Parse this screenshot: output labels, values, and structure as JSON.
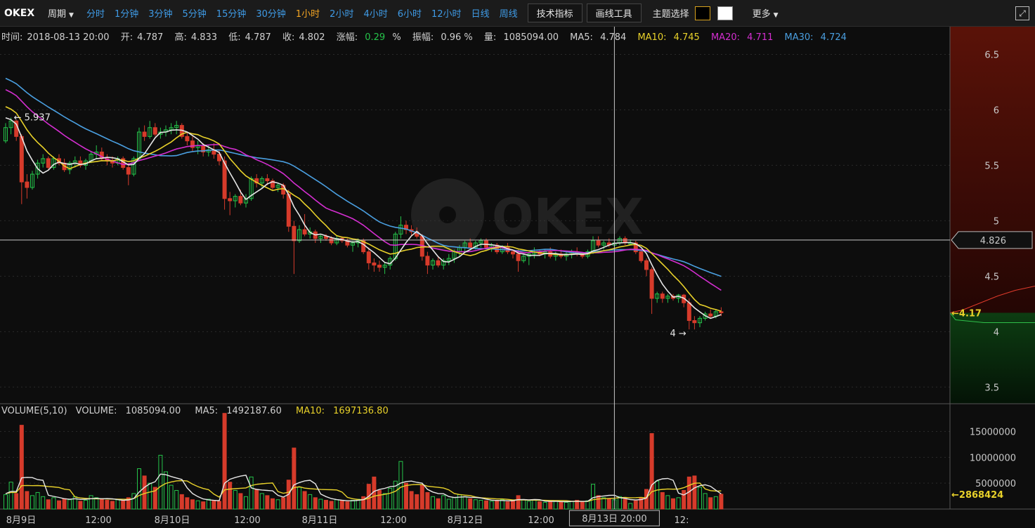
{
  "toolbar": {
    "brand": "OKEX",
    "period_label": "周期",
    "timeframes": [
      {
        "label": "分时",
        "active": false
      },
      {
        "label": "1分钟",
        "active": false
      },
      {
        "label": "3分钟",
        "active": false
      },
      {
        "label": "5分钟",
        "active": false
      },
      {
        "label": "15分钟",
        "active": false
      },
      {
        "label": "30分钟",
        "active": false
      },
      {
        "label": "1小时",
        "active": true
      },
      {
        "label": "2小时",
        "active": false
      },
      {
        "label": "4小时",
        "active": false
      },
      {
        "label": "6小时",
        "active": false
      },
      {
        "label": "12小时",
        "active": false
      },
      {
        "label": "日线",
        "active": false
      },
      {
        "label": "周线",
        "active": false
      }
    ],
    "indicator_button": "技术指标",
    "drawing_button": "画线工具",
    "theme_label": "主题选择",
    "more_label": "更多"
  },
  "info": {
    "time_label": "时间:",
    "time": "2018-08-13  20:00",
    "open_label": "开:",
    "open": "4.787",
    "high_label": "高:",
    "high": "4.833",
    "low_label": "低:",
    "low": "4.787",
    "close_label": "收:",
    "close": "4.802",
    "change_label": "涨幅:",
    "change": "0.29",
    "change_unit": "%",
    "amplitude_label": "振幅:",
    "amplitude": "0.96 %",
    "volume_label": "量:",
    "volume": "1085094.00",
    "ma5_label": "MA5:",
    "ma5": "4.784",
    "ma10_label": "MA10:",
    "ma10": "4.745",
    "ma20_label": "MA20:",
    "ma20": "4.711",
    "ma30_label": "MA30:",
    "ma30": "4.724"
  },
  "vol_info": {
    "title": "VOLUME(5,10)",
    "volume_label": "VOLUME:",
    "volume": "1085094.00",
    "ma5_label": "MA5:",
    "ma5": "1492187.60",
    "ma10_label": "MA10:",
    "ma10": "1697136.80"
  },
  "watermark": "OKEX",
  "colors": {
    "up": "#25c44a",
    "down": "#d63b2b",
    "ma5": "#e6e6e6",
    "ma10": "#e8d12a",
    "ma20": "#d42ed0",
    "ma30": "#4a9fe0"
  },
  "chart_data": {
    "type": "candlestick",
    "interval": "1h",
    "y_ticks": [
      "6.5",
      "6",
      "5.5",
      "5",
      "4.5",
      "4",
      "3.5"
    ],
    "ylim": [
      3.35,
      6.75
    ],
    "x_ticks": [
      "8月9日",
      "12:00",
      "8月10日",
      "12:00",
      "8月11日",
      "12:00",
      "8月12日",
      "12:00",
      "8月13日",
      "12:"
    ],
    "volume_ticks": [
      "15000000",
      "10000000",
      "5000000"
    ],
    "volume_ylim": [
      0,
      19000000
    ],
    "crosshair_price": "4.826",
    "crosshair_time": "8月13日  20:00",
    "max_annotation": "5.937",
    "min_annotation": "4",
    "last_price": "4.17",
    "last_volume": "2868424",
    "ohlc": [
      [
        5.72,
        5.88,
        5.7,
        5.84
      ],
      [
        5.84,
        5.93,
        5.78,
        5.9
      ],
      [
        5.9,
        5.91,
        5.72,
        5.76
      ],
      [
        5.76,
        5.78,
        5.15,
        5.35
      ],
      [
        5.35,
        5.42,
        5.2,
        5.3
      ],
      [
        5.3,
        5.45,
        5.28,
        5.42
      ],
      [
        5.42,
        5.55,
        5.38,
        5.52
      ],
      [
        5.52,
        5.6,
        5.48,
        5.56
      ],
      [
        5.56,
        5.58,
        5.46,
        5.48
      ],
      [
        5.48,
        5.58,
        5.46,
        5.56
      ],
      [
        5.56,
        5.6,
        5.5,
        5.52
      ],
      [
        5.52,
        5.56,
        5.44,
        5.46
      ],
      [
        5.46,
        5.54,
        5.42,
        5.52
      ],
      [
        5.52,
        5.58,
        5.48,
        5.54
      ],
      [
        5.54,
        5.58,
        5.48,
        5.5
      ],
      [
        5.5,
        5.56,
        5.46,
        5.54
      ],
      [
        5.54,
        5.62,
        5.52,
        5.6
      ],
      [
        5.6,
        5.68,
        5.56,
        5.62
      ],
      [
        5.62,
        5.66,
        5.54,
        5.56
      ],
      [
        5.56,
        5.6,
        5.5,
        5.54
      ],
      [
        5.54,
        5.58,
        5.48,
        5.52
      ],
      [
        5.52,
        5.58,
        5.5,
        5.56
      ],
      [
        5.56,
        5.58,
        5.46,
        5.48
      ],
      [
        5.48,
        5.52,
        5.32,
        5.42
      ],
      [
        5.42,
        5.58,
        5.4,
        5.56
      ],
      [
        5.56,
        5.84,
        5.54,
        5.8
      ],
      [
        5.8,
        5.86,
        5.72,
        5.76
      ],
      [
        5.76,
        5.9,
        5.74,
        5.84
      ],
      [
        5.84,
        5.88,
        5.76,
        5.78
      ],
      [
        5.78,
        5.84,
        5.74,
        5.8
      ],
      [
        5.8,
        5.86,
        5.76,
        5.82
      ],
      [
        5.82,
        5.88,
        5.78,
        5.84
      ],
      [
        5.84,
        5.9,
        5.78,
        5.86
      ],
      [
        5.86,
        5.88,
        5.74,
        5.76
      ],
      [
        5.76,
        5.8,
        5.68,
        5.72
      ],
      [
        5.72,
        5.76,
        5.62,
        5.66
      ],
      [
        5.66,
        5.72,
        5.6,
        5.68
      ],
      [
        5.68,
        5.7,
        5.58,
        5.62
      ],
      [
        5.62,
        5.68,
        5.58,
        5.64
      ],
      [
        5.64,
        5.7,
        5.56,
        5.6
      ],
      [
        5.6,
        5.64,
        5.5,
        5.54
      ],
      [
        5.54,
        5.58,
        5.1,
        5.2
      ],
      [
        5.2,
        5.26,
        5.05,
        5.18
      ],
      [
        5.18,
        5.24,
        5.12,
        5.22
      ],
      [
        5.22,
        5.28,
        5.14,
        5.16
      ],
      [
        5.16,
        5.24,
        5.12,
        5.2
      ],
      [
        5.2,
        5.4,
        5.18,
        5.38
      ],
      [
        5.38,
        5.42,
        5.3,
        5.34
      ],
      [
        5.34,
        5.4,
        5.3,
        5.38
      ],
      [
        5.38,
        5.42,
        5.32,
        5.36
      ],
      [
        5.36,
        5.38,
        5.28,
        5.3
      ],
      [
        5.3,
        5.34,
        5.26,
        5.32
      ],
      [
        5.32,
        5.34,
        5.2,
        5.24
      ],
      [
        5.24,
        5.28,
        4.9,
        4.95
      ],
      [
        4.95,
        5.0,
        4.52,
        4.82
      ],
      [
        4.82,
        4.96,
        4.8,
        4.92
      ],
      [
        4.92,
        5.06,
        4.86,
        4.88
      ],
      [
        4.88,
        4.94,
        4.84,
        4.9
      ],
      [
        4.9,
        4.92,
        4.8,
        4.84
      ],
      [
        4.84,
        4.88,
        4.8,
        4.86
      ],
      [
        4.86,
        4.88,
        4.82,
        4.84
      ],
      [
        4.84,
        4.86,
        4.78,
        4.8
      ],
      [
        4.8,
        4.86,
        4.78,
        4.84
      ],
      [
        4.84,
        4.86,
        4.8,
        4.82
      ],
      [
        4.82,
        4.84,
        4.76,
        4.78
      ],
      [
        4.78,
        4.82,
        4.72,
        4.8
      ],
      [
        4.8,
        4.84,
        4.76,
        4.82
      ],
      [
        4.82,
        4.84,
        4.7,
        4.72
      ],
      [
        4.72,
        4.76,
        4.56,
        4.62
      ],
      [
        4.62,
        4.66,
        4.54,
        4.6
      ],
      [
        4.6,
        4.64,
        4.54,
        4.58
      ],
      [
        4.58,
        4.62,
        4.52,
        4.6
      ],
      [
        4.6,
        4.68,
        4.56,
        4.66
      ],
      [
        4.66,
        4.9,
        4.64,
        4.88
      ],
      [
        4.88,
        5.04,
        4.84,
        4.96
      ],
      [
        4.96,
        5.0,
        4.88,
        4.92
      ],
      [
        4.92,
        4.96,
        4.86,
        4.9
      ],
      [
        4.9,
        4.94,
        4.84,
        4.86
      ],
      [
        4.86,
        4.88,
        4.64,
        4.68
      ],
      [
        4.68,
        4.72,
        4.52,
        4.6
      ],
      [
        4.6,
        4.66,
        4.56,
        4.64
      ],
      [
        4.64,
        4.68,
        4.58,
        4.6
      ],
      [
        4.6,
        4.66,
        4.56,
        4.64
      ],
      [
        4.64,
        4.7,
        4.6,
        4.66
      ],
      [
        4.66,
        4.74,
        4.62,
        4.72
      ],
      [
        4.72,
        4.78,
        4.68,
        4.76
      ],
      [
        4.76,
        4.82,
        4.72,
        4.8
      ],
      [
        4.8,
        4.84,
        4.74,
        4.76
      ],
      [
        4.76,
        4.82,
        4.74,
        4.8
      ],
      [
        4.8,
        4.84,
        4.76,
        4.82
      ],
      [
        4.82,
        4.84,
        4.74,
        4.76
      ],
      [
        4.76,
        4.8,
        4.72,
        4.78
      ],
      [
        4.78,
        4.8,
        4.7,
        4.72
      ],
      [
        4.72,
        4.78,
        4.7,
        4.76
      ],
      [
        4.76,
        4.8,
        4.7,
        4.72
      ],
      [
        4.72,
        4.74,
        4.66,
        4.7
      ],
      [
        4.7,
        4.74,
        4.54,
        4.64
      ],
      [
        4.64,
        4.7,
        4.62,
        4.68
      ],
      [
        4.68,
        4.72,
        4.6,
        4.7
      ],
      [
        4.7,
        4.76,
        4.66,
        4.72
      ],
      [
        4.72,
        4.74,
        4.68,
        4.7
      ],
      [
        4.7,
        4.74,
        4.66,
        4.72
      ],
      [
        4.72,
        4.76,
        4.66,
        4.68
      ],
      [
        4.68,
        4.72,
        4.64,
        4.7
      ],
      [
        4.7,
        4.74,
        4.66,
        4.68
      ],
      [
        4.68,
        4.72,
        4.64,
        4.7
      ],
      [
        4.7,
        4.74,
        4.66,
        4.72
      ],
      [
        4.72,
        4.76,
        4.68,
        4.7
      ],
      [
        4.7,
        4.72,
        4.66,
        4.68
      ],
      [
        4.68,
        4.74,
        4.66,
        4.72
      ],
      [
        4.72,
        4.86,
        4.7,
        4.82
      ],
      [
        4.82,
        4.86,
        4.76,
        4.78
      ],
      [
        4.78,
        4.82,
        4.74,
        4.8
      ],
      [
        4.8,
        4.84,
        4.76,
        4.78
      ],
      [
        4.78,
        4.82,
        4.76,
        4.8
      ],
      [
        4.8,
        4.86,
        4.78,
        4.84
      ],
      [
        4.84,
        4.86,
        4.78,
        4.8
      ],
      [
        4.79,
        4.83,
        4.79,
        4.8
      ],
      [
        4.8,
        4.82,
        4.7,
        4.72
      ],
      [
        4.72,
        4.74,
        4.62,
        4.64
      ],
      [
        4.64,
        4.66,
        4.5,
        4.56
      ],
      [
        4.56,
        4.58,
        4.16,
        4.3
      ],
      [
        4.3,
        4.36,
        4.26,
        4.34
      ],
      [
        4.34,
        4.36,
        4.26,
        4.3
      ],
      [
        4.3,
        4.34,
        4.26,
        4.32
      ],
      [
        4.32,
        4.34,
        4.28,
        4.3
      ],
      [
        4.3,
        4.34,
        4.26,
        4.33
      ],
      [
        4.33,
        4.34,
        4.22,
        4.26
      ],
      [
        4.26,
        4.3,
        4.02,
        4.1
      ],
      [
        4.1,
        4.14,
        4.02,
        4.08
      ],
      [
        4.08,
        4.14,
        4.04,
        4.12
      ],
      [
        4.12,
        4.18,
        4.1,
        4.16
      ],
      [
        4.16,
        4.2,
        4.12,
        4.14
      ],
      [
        4.14,
        4.2,
        4.12,
        4.18
      ],
      [
        4.18,
        4.22,
        4.14,
        4.17
      ]
    ],
    "volume": [
      2800000,
      5200000,
      3000000,
      16200000,
      3400000,
      2600000,
      3200000,
      2400000,
      1800000,
      2200000,
      1600000,
      2000000,
      1800000,
      2400000,
      1500000,
      1700000,
      2600000,
      2200000,
      1900000,
      1700000,
      1500000,
      1800000,
      1600000,
      2200000,
      3000000,
      7800000,
      6400000,
      5000000,
      4200000,
      10400000,
      7200000,
      4600000,
      3600000,
      2800000,
      2200000,
      1800000,
      1600000,
      1400000,
      1900000,
      1700000,
      1500000,
      18500000,
      5200000,
      3600000,
      3000000,
      2400000,
      6200000,
      3800000,
      3000000,
      2600000,
      2000000,
      1800000,
      2200000,
      5600000,
      11800000,
      4200000,
      3400000,
      2800000,
      2200000,
      1900000,
      1700000,
      1500000,
      1800000,
      1600000,
      1400000,
      1700000,
      1900000,
      2400000,
      4800000,
      6200000,
      3600000,
      3000000,
      4000000,
      5400000,
      9200000,
      5000000,
      3400000,
      2800000,
      4600000,
      3200000,
      2400000,
      2000000,
      2600000,
      1900000,
      2200000,
      2800000,
      2400000,
      2000000,
      1800000,
      1700000,
      1600000,
      1500000,
      1700000,
      1800000,
      1400000,
      1600000,
      2600000,
      1800000,
      1500000,
      1700000,
      1400000,
      1300000,
      1500000,
      1600000,
      1400000,
      1300000,
      1500000,
      1700000,
      1400000,
      1600000,
      4800000,
      2600000,
      2200000,
      2000000,
      1800000,
      2400000,
      1900000,
      1085094,
      1600000,
      2200000,
      3800000,
      14600000,
      5400000,
      3200000,
      2600000,
      2000000,
      2200000,
      3600000,
      6200000,
      6400000,
      4200000,
      3000000,
      2200000,
      2400000,
      2868424
    ]
  }
}
